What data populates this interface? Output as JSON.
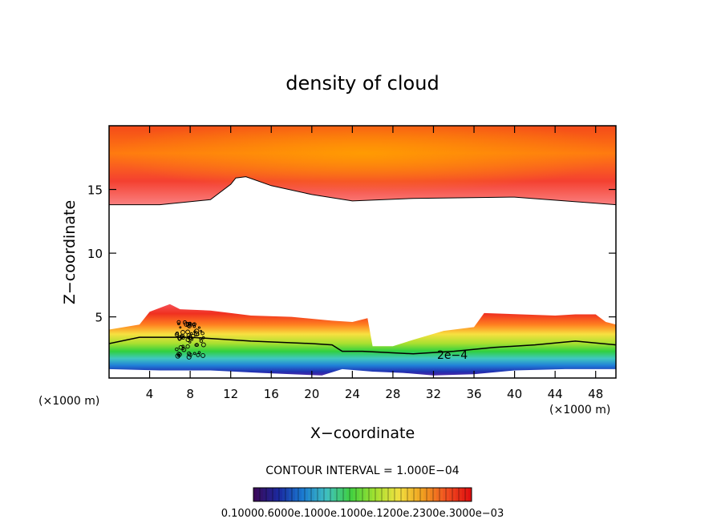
{
  "chart_data": {
    "type": "heatmap",
    "title": "density of cloud",
    "xlabel": "X−coordinate",
    "ylabel": "Z−coordinate",
    "x_unit": "(×1000 m)",
    "y_unit": "(×1000 m)",
    "xlim": [
      0,
      50
    ],
    "ylim": [
      0.2,
      20
    ],
    "x_ticks": [
      4,
      8,
      12,
      16,
      20,
      24,
      28,
      32,
      36,
      40,
      44,
      48
    ],
    "y_ticks": [
      5,
      10,
      15
    ],
    "contour_label": "2e−4",
    "contour_interval_text": "CONTOUR INTERVAL = 1.000E−04",
    "colorbar_labels_text": "0.10000.6000e.1000e.1000e.1200e.2300e.3000e−03",
    "colorbar_colors": [
      "#3a0a5a",
      "#1a2aa0",
      "#1a7ad0",
      "#40c0c0",
      "#40d040",
      "#a0e030",
      "#f0e040",
      "#f0a020",
      "#f05020",
      "#e01010"
    ],
    "upper_band": {
      "top": 20,
      "bottom_profile": [
        [
          0,
          13.8
        ],
        [
          5,
          13.8
        ],
        [
          10,
          14.2
        ],
        [
          12,
          15.4
        ],
        [
          12.5,
          15.9
        ],
        [
          13.5,
          16.0
        ],
        [
          16,
          15.3
        ],
        [
          20,
          14.6
        ],
        [
          24,
          14.1
        ],
        [
          30,
          14.3
        ],
        [
          40,
          14.4
        ],
        [
          45,
          14.1
        ],
        [
          50,
          13.8
        ]
      ]
    },
    "lower_layer": {
      "cloud_top": [
        [
          0,
          4.0
        ],
        [
          3,
          4.4
        ],
        [
          4,
          5.4
        ],
        [
          6,
          6.0
        ],
        [
          7,
          5.6
        ],
        [
          10,
          5.5
        ],
        [
          14,
          5.1
        ],
        [
          18,
          5.0
        ],
        [
          22,
          4.7
        ],
        [
          24,
          4.6
        ],
        [
          25.5,
          4.9
        ],
        [
          26,
          2.7
        ],
        [
          28,
          2.7
        ],
        [
          30,
          3.2
        ],
        [
          33,
          3.9
        ],
        [
          36,
          4.2
        ],
        [
          37,
          5.3
        ],
        [
          44,
          5.1
        ],
        [
          46,
          5.2
        ],
        [
          48,
          5.2
        ],
        [
          49,
          4.6
        ],
        [
          50,
          4.4
        ]
      ],
      "contour_2e4": [
        [
          0,
          2.9
        ],
        [
          3,
          3.4
        ],
        [
          8,
          3.4
        ],
        [
          14,
          3.1
        ],
        [
          20,
          2.9
        ],
        [
          22,
          2.8
        ],
        [
          23,
          2.3
        ],
        [
          25,
          2.3
        ],
        [
          30,
          2.1
        ],
        [
          34,
          2.3
        ],
        [
          38,
          2.6
        ],
        [
          42,
          2.8
        ],
        [
          46,
          3.1
        ],
        [
          50,
          2.8
        ]
      ],
      "cloud_base": [
        [
          0,
          0.9
        ],
        [
          5,
          0.8
        ],
        [
          10,
          0.8
        ],
        [
          15,
          0.6
        ],
        [
          18,
          0.5
        ],
        [
          21,
          0.4
        ],
        [
          23,
          0.9
        ],
        [
          26,
          0.7
        ],
        [
          29,
          0.6
        ],
        [
          32,
          0.4
        ],
        [
          36,
          0.5
        ],
        [
          40,
          0.8
        ],
        [
          45,
          0.9
        ],
        [
          50,
          0.9
        ]
      ]
    }
  }
}
